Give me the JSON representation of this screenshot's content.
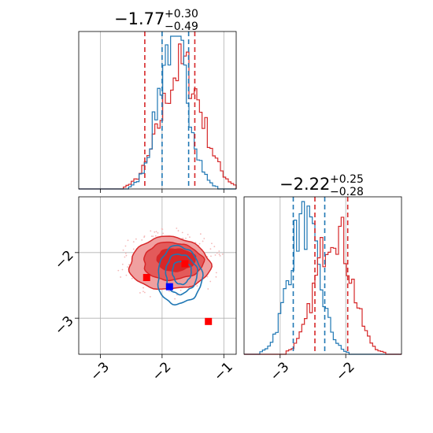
{
  "chart_data": {
    "type": "corner",
    "colors": {
      "red": "#d62728",
      "blue": "#1f77b4",
      "red_fill_light": "#f0a0a0",
      "red_fill_mid": "#e35a5a",
      "grid": "#b0b0b0",
      "marker_blue": "#0000ff",
      "marker_red": "#ff0000"
    },
    "grid": true,
    "params": [
      {
        "title_main": "−1.77",
        "title_plus": "+0.30",
        "title_minus": "−0.49",
        "range": [
          -3.35,
          -0.8
        ],
        "ticks": [
          -3,
          -2,
          -1
        ],
        "tick_labels": [
          "−3",
          "−2",
          "−1"
        ]
      },
      {
        "title_main": "−2.22",
        "title_plus": "+0.25",
        "title_minus": "−0.28",
        "range": [
          -3.55,
          -1.15
        ],
        "ticks": [
          -3,
          -2
        ],
        "tick_labels": [
          "−3",
          "−2"
        ]
      }
    ],
    "hist1": {
      "red": {
        "mean": -1.68,
        "sd": 0.33,
        "peak": 0.8,
        "quantiles": [
          -2.28,
          -1.47
        ]
      },
      "blue": {
        "mean": -1.82,
        "sd": 0.24,
        "peak": 1.0,
        "quantiles": [
          -2.0,
          -1.57
        ]
      }
    },
    "hist2": {
      "red": {
        "mean": -2.18,
        "sd": 0.26,
        "peak": 0.85,
        "quantiles": [
          -2.47,
          -1.97
        ]
      },
      "blue": {
        "mean": -2.64,
        "sd": 0.23,
        "peak": 0.87,
        "quantiles": [
          -2.8,
          -2.32
        ]
      }
    },
    "joint": {
      "red": {
        "center": [
          -1.88,
          -2.17
        ],
        "radius": [
          0.62,
          0.38
        ]
      },
      "blue": {
        "center": [
          -1.72,
          -2.35
        ],
        "radius": [
          0.34,
          0.42
        ]
      }
    },
    "markers": [
      {
        "color": "blue",
        "x": -1.88,
        "y": -2.52
      },
      {
        "color": "red",
        "x": -2.25,
        "y": -2.38
      },
      {
        "color": "red",
        "x": -1.63,
        "y": -2.17
      },
      {
        "color": "red",
        "x": -1.25,
        "y": -3.05
      }
    ]
  }
}
